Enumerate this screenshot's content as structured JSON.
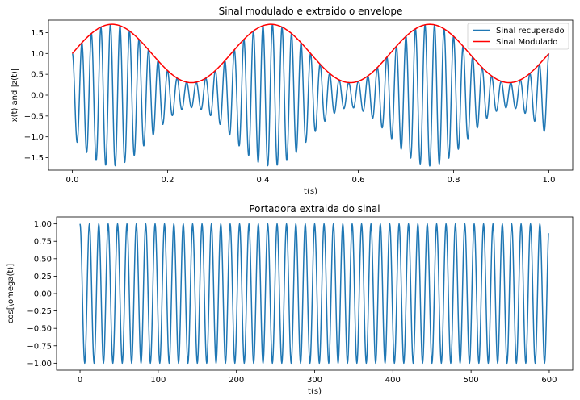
{
  "chart_data": [
    {
      "type": "line",
      "title": "Sinal modulado e extraido o envelope",
      "xlabel": "t(s)",
      "ylabel": "x(t) and |z(t)|",
      "xlim": [
        -0.05,
        1.05
      ],
      "ylim": [
        -1.8,
        1.8
      ],
      "xticks": [
        0.0,
        0.2,
        0.4,
        0.6,
        0.8,
        1.0
      ],
      "xtick_labels": [
        "0.0",
        "0.2",
        "0.4",
        "0.6",
        "0.8",
        "1.0"
      ],
      "yticks": [
        -1.5,
        -1.0,
        -0.5,
        0.0,
        0.5,
        1.0,
        1.5
      ],
      "ytick_labels": [
        "−1.5",
        "−1.0",
        "−0.5",
        "0.0",
        "0.5",
        "1.0",
        "1.5"
      ],
      "legend_position": "top-right",
      "grid": false,
      "series": [
        {
          "name": "Sinal recuperado",
          "color": "#1f77b4",
          "form": "(1 + 0.7*cos(2*pi*3*t - 0.5*pi)) * cos(2*pi*50*t)",
          "x_range": [
            0.0,
            1.0
          ],
          "envelope_max": 1.7,
          "envelope_min": 0.3,
          "carrier_hz": 50,
          "modulation_hz": 3
        },
        {
          "name": "Sinal Modulado",
          "color": "#ff0000",
          "form": "1 + 0.7*cos(2*pi*3*t - 0.5*pi)",
          "x_range": [
            0.0,
            1.0
          ],
          "max": 1.7,
          "min": 0.3
        }
      ]
    },
    {
      "type": "line",
      "title": "Portadora extraida do sinal",
      "xlabel": "t(s)",
      "ylabel": "cos[\\omega(t)]",
      "xlim": [
        -30,
        630
      ],
      "ylim": [
        -1.1,
        1.1
      ],
      "xticks": [
        0,
        100,
        200,
        300,
        400,
        500,
        600
      ],
      "xtick_labels": [
        "0",
        "100",
        "200",
        "300",
        "400",
        "500",
        "600"
      ],
      "yticks": [
        -1.0,
        -0.75,
        -0.5,
        -0.25,
        0.0,
        0.25,
        0.5,
        0.75,
        1.0
      ],
      "ytick_labels": [
        "−1.00",
        "−0.75",
        "−0.50",
        "−0.25",
        "0.00",
        "0.25",
        "0.50",
        "0.75",
        "1.00"
      ],
      "grid": false,
      "series": [
        {
          "color": "#1f77b4",
          "form": "cos(2*pi*t/12)",
          "x_range": [
            0,
            599
          ],
          "period_samples": 12
        }
      ]
    }
  ]
}
